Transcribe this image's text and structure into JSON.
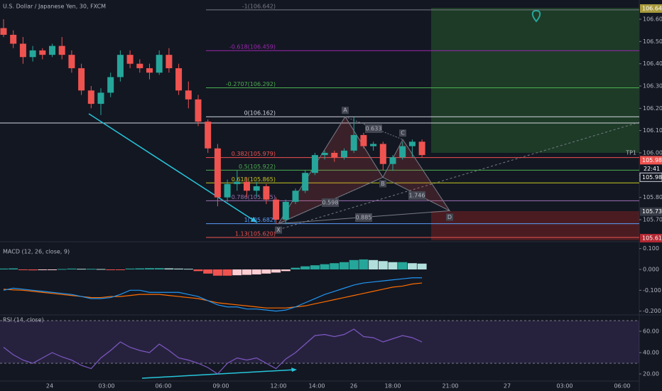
{
  "header": {
    "title": "U.S. Dollar / Japanese Yen, 30, FXCM"
  },
  "price_axis": {
    "ticks": [
      {
        "value": 106.6,
        "label": "106.600"
      },
      {
        "value": 106.5,
        "label": "106.500"
      },
      {
        "value": 106.4,
        "label": "106.400"
      },
      {
        "value": 106.3,
        "label": "106.300"
      },
      {
        "value": 106.2,
        "label": "106.200"
      },
      {
        "value": 106.1,
        "label": "106.100"
      },
      {
        "value": 106.0,
        "label": "106.000"
      },
      {
        "value": 105.9,
        "label": "105.900"
      },
      {
        "value": 105.8,
        "label": "105.800"
      },
      {
        "value": 105.7,
        "label": "105.700"
      }
    ],
    "badges": [
      {
        "value": 106.648,
        "label": "106.648",
        "color": "#a89a3c"
      },
      {
        "value": 105.986,
        "label": "105.986",
        "color": "#ef5350"
      },
      {
        "value": 105.983,
        "label": "105.983",
        "color": "#131722"
      },
      {
        "value": 105.736,
        "label": "105.736",
        "color": "#363a45"
      },
      {
        "value": 105.617,
        "label": "105.617",
        "color": "#b22833"
      }
    ],
    "countdown": "22:41",
    "tp_label": "TP1"
  },
  "candles": [
    [
      106.56,
      106.6,
      106.52,
      106.53
    ],
    [
      106.53,
      106.55,
      106.47,
      106.49
    ],
    [
      106.49,
      106.52,
      106.4,
      106.43
    ],
    [
      106.43,
      106.48,
      106.41,
      106.46
    ],
    [
      106.46,
      106.47,
      106.42,
      106.44
    ],
    [
      106.44,
      106.49,
      106.43,
      106.48
    ],
    [
      106.48,
      106.52,
      106.42,
      106.44
    ],
    [
      106.44,
      106.46,
      106.36,
      106.38
    ],
    [
      106.38,
      106.4,
      106.26,
      106.28
    ],
    [
      106.28,
      106.3,
      106.2,
      106.22
    ],
    [
      106.22,
      106.29,
      106.17,
      106.27
    ],
    [
      106.27,
      106.36,
      106.25,
      106.34
    ],
    [
      106.34,
      106.46,
      106.32,
      106.44
    ],
    [
      106.44,
      106.46,
      106.38,
      106.4
    ],
    [
      106.4,
      106.42,
      106.36,
      106.38
    ],
    [
      106.38,
      106.4,
      106.33,
      106.36
    ],
    [
      106.36,
      106.46,
      106.35,
      106.44
    ],
    [
      106.44,
      106.47,
      106.36,
      106.38
    ],
    [
      106.38,
      106.4,
      106.26,
      106.28
    ],
    [
      106.28,
      106.32,
      106.2,
      106.24
    ],
    [
      106.24,
      106.26,
      106.12,
      106.14
    ],
    [
      106.14,
      106.15,
      106.0,
      106.02
    ],
    [
      106.02,
      106.04,
      105.76,
      105.8
    ],
    [
      105.8,
      105.88,
      105.78,
      105.86
    ],
    [
      105.86,
      105.92,
      105.83,
      105.87
    ],
    [
      105.87,
      105.89,
      105.8,
      105.83
    ],
    [
      105.83,
      105.87,
      105.8,
      105.85
    ],
    [
      105.85,
      105.86,
      105.77,
      105.79
    ],
    [
      105.79,
      105.8,
      105.68,
      105.7
    ],
    [
      105.7,
      105.79,
      105.68,
      105.78
    ],
    [
      105.78,
      105.84,
      105.77,
      105.83
    ],
    [
      105.83,
      105.92,
      105.82,
      105.91
    ],
    [
      105.91,
      106.0,
      105.9,
      105.99
    ],
    [
      105.99,
      106.01,
      105.97,
      106.0
    ],
    [
      106.0,
      106.01,
      105.96,
      105.98
    ],
    [
      105.98,
      106.02,
      105.97,
      106.01
    ],
    [
      106.01,
      106.16,
      106.0,
      106.08
    ],
    [
      106.08,
      106.09,
      106.02,
      106.03
    ],
    [
      106.03,
      106.05,
      106.01,
      106.04
    ],
    [
      106.04,
      106.05,
      105.92,
      105.95
    ],
    [
      105.95,
      105.99,
      105.92,
      105.98
    ],
    [
      105.98,
      106.05,
      105.97,
      106.03
    ],
    [
      106.03,
      106.06,
      105.98,
      106.05
    ],
    [
      106.05,
      106.06,
      105.98,
      105.99
    ]
  ],
  "fib_levels": [
    {
      "value": 106.642,
      "label": "-1(106.642)",
      "color": "#787b86"
    },
    {
      "value": 106.459,
      "label": "-0.618(106.459)",
      "color": "#9c27b0"
    },
    {
      "value": 106.292,
      "label": "-0.2707(106.292)",
      "color": "#4caf50"
    },
    {
      "value": 106.162,
      "label": "0(106.162)",
      "color": "#d1d4dc"
    },
    {
      "value": 105.979,
      "label": "0.382(105.979)",
      "color": "#ef5350"
    },
    {
      "value": 105.922,
      "label": "0.5(105.922)",
      "color": "#4caf50"
    },
    {
      "value": 105.865,
      "label": "0.618(105.865)",
      "color": "#c8c81e"
    },
    {
      "value": 105.785,
      "label": "0.786(105.785)",
      "color": "#9c6fb0"
    },
    {
      "value": 105.682,
      "label": "1(105.682)",
      "color": "#5b9cf6"
    },
    {
      "value": 105.62,
      "label": "1.13(105.620)",
      "color": "#ef5350"
    }
  ],
  "pattern": {
    "points": [
      {
        "label": "X",
        "value": 105.682
      },
      {
        "label": "A",
        "value": 106.162
      },
      {
        "label": "B",
        "value": 105.89
      },
      {
        "label": "C",
        "value": 106.06
      },
      {
        "label": "D",
        "value": 105.74
      }
    ],
    "ratios": [
      "0.633",
      "0.598",
      "1.746",
      "0.885"
    ]
  },
  "time_axis": [
    "24",
    "03:00",
    "06:00",
    "09:00",
    "12:00",
    "14:00",
    "26",
    "18:00",
    "21:00",
    "27",
    "03:00",
    "06:00"
  ],
  "macd": {
    "title": "MACD (12, 26, close, 9)",
    "ticks": [
      {
        "value": 0.1,
        "label": "0.100"
      },
      {
        "value": 0,
        "label": "0.000"
      },
      {
        "value": -0.1,
        "label": "-0.100"
      },
      {
        "value": -0.2,
        "label": "-0.200"
      }
    ],
    "histogram": [
      0.004,
      0.005,
      -0.003,
      -0.004,
      -0.002,
      -0.001,
      0.002,
      0.004,
      0.003,
      0.003,
      0.002,
      -0.002,
      -0.003,
      0.004,
      0.005,
      0.006,
      0.006,
      0.005,
      0.004,
      0.003,
      -0.008,
      -0.02,
      -0.03,
      -0.03,
      -0.028,
      -0.026,
      -0.024,
      -0.02,
      -0.015,
      -0.008,
      0.008,
      0.015,
      0.02,
      0.025,
      0.03,
      0.035,
      0.045,
      0.048,
      0.045,
      0.04,
      0.035,
      0.035,
      0.03,
      0.028
    ],
    "macd_line": [
      -0.1,
      -0.09,
      -0.095,
      -0.1,
      -0.105,
      -0.11,
      -0.115,
      -0.12,
      -0.13,
      -0.14,
      -0.14,
      -0.135,
      -0.12,
      -0.1,
      -0.1,
      -0.11,
      -0.11,
      -0.11,
      -0.11,
      -0.12,
      -0.13,
      -0.15,
      -0.17,
      -0.18,
      -0.18,
      -0.19,
      -0.19,
      -0.195,
      -0.2,
      -0.195,
      -0.18,
      -0.16,
      -0.14,
      -0.12,
      -0.105,
      -0.09,
      -0.075,
      -0.065,
      -0.06,
      -0.055,
      -0.05,
      -0.045,
      -0.04,
      -0.04
    ],
    "signal_line": [
      -0.095,
      -0.098,
      -0.1,
      -0.105,
      -0.11,
      -0.115,
      -0.12,
      -0.125,
      -0.13,
      -0.135,
      -0.135,
      -0.13,
      -0.13,
      -0.125,
      -0.12,
      -0.12,
      -0.12,
      -0.125,
      -0.13,
      -0.135,
      -0.14,
      -0.15,
      -0.16,
      -0.165,
      -0.17,
      -0.175,
      -0.18,
      -0.185,
      -0.185,
      -0.185,
      -0.18,
      -0.175,
      -0.165,
      -0.155,
      -0.145,
      -0.135,
      -0.125,
      -0.115,
      -0.105,
      -0.095,
      -0.085,
      -0.08,
      -0.07,
      -0.065
    ]
  },
  "rsi": {
    "title": "RSI (14, close)",
    "ticks": [
      {
        "value": 60,
        "label": "60.00"
      },
      {
        "value": 40,
        "label": "40.00"
      },
      {
        "value": 20,
        "label": "20.00"
      }
    ],
    "bands": [
      70,
      30
    ],
    "values": [
      45,
      38,
      33,
      30,
      35,
      40,
      36,
      33,
      28,
      25,
      35,
      42,
      50,
      45,
      42,
      40,
      48,
      42,
      35,
      33,
      30,
      26,
      20,
      30,
      35,
      33,
      35,
      30,
      25,
      34,
      40,
      48,
      56,
      57,
      55,
      57,
      62,
      55,
      54,
      50,
      53,
      56,
      54,
      50
    ]
  }
}
